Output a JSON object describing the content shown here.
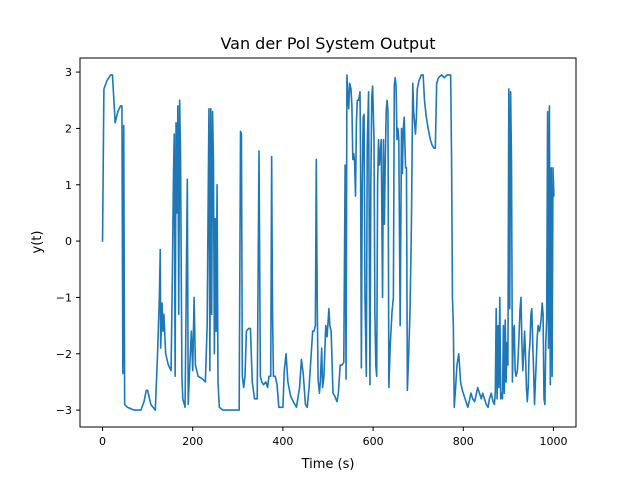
{
  "chart_data": {
    "type": "line",
    "title": "Van der Pol System Output",
    "xlabel": "Time (s)",
    "ylabel": "y(t)",
    "xlim": [
      -50,
      1050
    ],
    "ylim": [
      -3.3,
      3.25
    ],
    "x_ticks": [
      0,
      200,
      400,
      600,
      800,
      1000
    ],
    "x_tick_labels": [
      "0",
      "200",
      "400",
      "600",
      "800",
      "1000"
    ],
    "y_ticks": [
      -3,
      -2,
      -1,
      0,
      1,
      2,
      3
    ],
    "y_tick_labels": [
      "−3",
      "−2",
      "−1",
      "0",
      "1",
      "2",
      "3"
    ],
    "grid": false,
    "legend": "none",
    "series": [
      {
        "color": "#1f77b4",
        "points": [
          [
            0,
            0.0
          ],
          [
            3,
            2.7
          ],
          [
            10,
            2.85
          ],
          [
            18,
            2.95
          ],
          [
            22,
            2.95
          ],
          [
            28,
            2.1
          ],
          [
            34,
            2.3
          ],
          [
            40,
            2.4
          ],
          [
            43,
            2.4
          ],
          [
            45,
            -2.35
          ],
          [
            47,
            2.05
          ],
          [
            49,
            -2.9
          ],
          [
            55,
            -2.95
          ],
          [
            70,
            -3.0
          ],
          [
            85,
            -3.0
          ],
          [
            92,
            -2.85
          ],
          [
            97,
            -2.65
          ],
          [
            100,
            -2.65
          ],
          [
            107,
            -2.9
          ],
          [
            117,
            -3.0
          ],
          [
            122,
            -2.0
          ],
          [
            126,
            -1.0
          ],
          [
            128,
            -0.15
          ],
          [
            129,
            -1.9
          ],
          [
            132,
            -1.1
          ],
          [
            134,
            -1.6
          ],
          [
            136,
            -1.3
          ],
          [
            140,
            -2.0
          ],
          [
            146,
            -2.2
          ],
          [
            152,
            -2.3
          ],
          [
            155,
            -0.5
          ],
          [
            157,
            1.0
          ],
          [
            159,
            1.9
          ],
          [
            161,
            -2.4
          ],
          [
            163,
            2.1
          ],
          [
            165,
            0.5
          ],
          [
            167,
            2.4
          ],
          [
            169,
            -1.3
          ],
          [
            171,
            2.5
          ],
          [
            173,
            1.5
          ],
          [
            176,
            -2.4
          ],
          [
            178,
            -2.8
          ],
          [
            183,
            -2.95
          ],
          [
            188,
            1.1
          ],
          [
            190,
            -2.9
          ],
          [
            193,
            -2.3
          ],
          [
            197,
            -1.6
          ],
          [
            200,
            -2.3
          ],
          [
            203,
            -1.0
          ],
          [
            206,
            -2.2
          ],
          [
            212,
            -2.4
          ],
          [
            222,
            -2.45
          ],
          [
            228,
            -2.5
          ],
          [
            232,
            -1.5
          ],
          [
            234,
            0.5
          ],
          [
            236,
            2.35
          ],
          [
            238,
            -2.3
          ],
          [
            240,
            2.35
          ],
          [
            242,
            -1.3
          ],
          [
            244,
            2.3
          ],
          [
            246,
            1.4
          ],
          [
            248,
            -2.0
          ],
          [
            250,
            0.4
          ],
          [
            252,
            -1.6
          ],
          [
            254,
            1.0
          ],
          [
            256,
            -2.5
          ],
          [
            259,
            -2.95
          ],
          [
            267,
            -3.0
          ],
          [
            280,
            -3.0
          ],
          [
            295,
            -3.0
          ],
          [
            303,
            -3.0
          ],
          [
            306,
            1.95
          ],
          [
            308,
            1.9
          ],
          [
            310,
            -2.4
          ],
          [
            313,
            -2.6
          ],
          [
            316,
            -2.4
          ],
          [
            319,
            -1.6
          ],
          [
            324,
            -1.55
          ],
          [
            328,
            -1.55
          ],
          [
            332,
            -2.5
          ],
          [
            337,
            -2.8
          ],
          [
            343,
            -2.8
          ],
          [
            347,
            1.6
          ],
          [
            350,
            -2.4
          ],
          [
            353,
            -2.5
          ],
          [
            357,
            -2.55
          ],
          [
            362,
            -2.5
          ],
          [
            366,
            -2.6
          ],
          [
            369,
            -2.4
          ],
          [
            373,
            -2.4
          ],
          [
            375,
            1.5
          ],
          [
            377,
            -1.3
          ],
          [
            379,
            -2.4
          ],
          [
            383,
            -2.4
          ],
          [
            387,
            -2.55
          ],
          [
            391,
            -2.95
          ],
          [
            396,
            -2.95
          ],
          [
            400,
            -2.95
          ],
          [
            403,
            -2.3
          ],
          [
            407,
            -2.0
          ],
          [
            411,
            -2.5
          ],
          [
            417,
            -2.75
          ],
          [
            423,
            -2.85
          ],
          [
            430,
            -2.95
          ],
          [
            437,
            -2.6
          ],
          [
            441,
            -2.1
          ],
          [
            445,
            -2.35
          ],
          [
            450,
            -2.9
          ],
          [
            454,
            -2.95
          ],
          [
            458,
            -2.6
          ],
          [
            462,
            -2.1
          ],
          [
            466,
            -1.6
          ],
          [
            469,
            -1.6
          ],
          [
            472,
            -1.5
          ],
          [
            474,
            1.45
          ],
          [
            476,
            -1.0
          ],
          [
            478,
            -2.45
          ],
          [
            481,
            -2.7
          ],
          [
            483,
            -2.5
          ],
          [
            486,
            -1.9
          ],
          [
            488,
            -2.6
          ],
          [
            491,
            -2.4
          ],
          [
            495,
            -1.5
          ],
          [
            498,
            -1.7
          ],
          [
            502,
            -1.2
          ],
          [
            504,
            -1.5
          ],
          [
            507,
            -1.6
          ],
          [
            511,
            -2.7
          ],
          [
            515,
            -2.75
          ],
          [
            520,
            -2.85
          ],
          [
            523,
            -2.7
          ],
          [
            527,
            -2.2
          ],
          [
            531,
            -2.2
          ],
          [
            535,
            -2.15
          ],
          [
            538,
            1.35
          ],
          [
            540,
            -2.45
          ],
          [
            542,
            2.95
          ],
          [
            544,
            2.6
          ],
          [
            546,
            2.35
          ],
          [
            548,
            2.8
          ],
          [
            551,
            2.7
          ],
          [
            553,
            2.4
          ],
          [
            555,
            1.45
          ],
          [
            557,
            1.55
          ],
          [
            559,
            1.4
          ],
          [
            561,
            0.8
          ],
          [
            563,
            2.1
          ],
          [
            565,
            2.5
          ],
          [
            568,
            2.5
          ],
          [
            571,
            2.65
          ],
          [
            572,
            1.7
          ],
          [
            574,
            -2.25
          ],
          [
            576,
            1.0
          ],
          [
            578,
            2.2
          ],
          [
            580,
            2.25
          ],
          [
            582,
            -1.0
          ],
          [
            585,
            -2.4
          ],
          [
            587,
            1.7
          ],
          [
            590,
            2.65
          ],
          [
            593,
            -2.55
          ],
          [
            595,
            1.0
          ],
          [
            597,
            2.55
          ],
          [
            599,
            2.75
          ],
          [
            602,
            1.8
          ],
          [
            604,
            -1.3
          ],
          [
            606,
            -2.2
          ],
          [
            608,
            -2.4
          ],
          [
            610,
            1.0
          ],
          [
            612,
            1.8
          ],
          [
            614,
            1.35
          ],
          [
            618,
            1.8
          ],
          [
            621,
            -1.0
          ],
          [
            623,
            1.8
          ],
          [
            625,
            0.3
          ],
          [
            627,
            1.4
          ],
          [
            629,
            2.3
          ],
          [
            631,
            2.5
          ],
          [
            633,
            2.3
          ],
          [
            635,
            -2.6
          ],
          [
            638,
            -1.85
          ],
          [
            642,
            -1.25
          ],
          [
            645,
            -1.0
          ],
          [
            647,
            2.75
          ],
          [
            649,
            2.9
          ],
          [
            651,
            2.75
          ],
          [
            653,
            1.8
          ],
          [
            655,
            2.0
          ],
          [
            657,
            1.8
          ],
          [
            660,
            -1.5
          ],
          [
            663,
            2.0
          ],
          [
            665,
            1.2
          ],
          [
            667,
            2.0
          ],
          [
            669,
            2.2
          ],
          [
            672,
            1.3
          ],
          [
            674,
            1.3
          ],
          [
            676,
            -2.65
          ],
          [
            679,
            -2.0
          ],
          [
            682,
            -1.2
          ],
          [
            685,
            0.3
          ],
          [
            688,
            2.8
          ],
          [
            690,
            2.3
          ],
          [
            692,
            2.1
          ],
          [
            694,
            1.9
          ],
          [
            696,
            2.2
          ],
          [
            698,
            2.7
          ],
          [
            702,
            2.85
          ],
          [
            707,
            2.95
          ],
          [
            711,
            2.95
          ],
          [
            714,
            2.5
          ],
          [
            718,
            2.2
          ],
          [
            722,
            2.0
          ],
          [
            727,
            1.8
          ],
          [
            731,
            1.7
          ],
          [
            735,
            1.65
          ],
          [
            738,
            1.65
          ],
          [
            741,
            2.8
          ],
          [
            745,
            2.9
          ],
          [
            752,
            2.95
          ],
          [
            758,
            2.9
          ],
          [
            764,
            2.95
          ],
          [
            768,
            2.95
          ],
          [
            772,
            2.95
          ],
          [
            774,
            1.5
          ],
          [
            776,
            -1.0
          ],
          [
            778,
            -1.5
          ],
          [
            780,
            -2.95
          ],
          [
            783,
            -2.6
          ],
          [
            786,
            -2.2
          ],
          [
            790,
            -2.0
          ],
          [
            794,
            -2.5
          ],
          [
            798,
            -2.65
          ],
          [
            802,
            -2.75
          ],
          [
            806,
            -2.85
          ],
          [
            810,
            -2.95
          ],
          [
            813,
            -2.85
          ],
          [
            817,
            -2.7
          ],
          [
            821,
            -2.8
          ],
          [
            825,
            -2.85
          ],
          [
            828,
            -2.75
          ],
          [
            832,
            -2.6
          ],
          [
            836,
            -2.7
          ],
          [
            840,
            -2.8
          ],
          [
            843,
            -2.7
          ],
          [
            847,
            -2.8
          ],
          [
            851,
            -2.9
          ],
          [
            855,
            -2.95
          ],
          [
            858,
            -2.8
          ],
          [
            862,
            -2.7
          ],
          [
            866,
            -2.85
          ],
          [
            869,
            -2.9
          ],
          [
            871,
            -2.7
          ],
          [
            873,
            -1.2
          ],
          [
            875,
            -2.8
          ],
          [
            877,
            -1.5
          ],
          [
            879,
            -2.6
          ],
          [
            881,
            -1.0
          ],
          [
            883,
            -2.8
          ],
          [
            885,
            -2.7
          ],
          [
            887,
            -2.8
          ],
          [
            889,
            -1.5
          ],
          [
            891,
            -2.7
          ],
          [
            893,
            -1.4
          ],
          [
            895,
            -2.5
          ],
          [
            897,
            -1.8
          ],
          [
            899,
            -2.2
          ],
          [
            901,
            2.7
          ],
          [
            903,
            -1.2
          ],
          [
            905,
            2.65
          ],
          [
            907,
            1.4
          ],
          [
            909,
            -2.5
          ],
          [
            911,
            -1.6
          ],
          [
            913,
            -1.5
          ],
          [
            915,
            -2.3
          ],
          [
            917,
            -2.4
          ],
          [
            920,
            -2.3
          ],
          [
            922,
            -2.0
          ],
          [
            924,
            -1.6
          ],
          [
            926,
            -1.2
          ],
          [
            928,
            -1.0
          ],
          [
            930,
            -1.8
          ],
          [
            932,
            -2.3
          ],
          [
            934,
            -2.0
          ],
          [
            936,
            -1.6
          ],
          [
            938,
            -2.0
          ],
          [
            940,
            -2.6
          ],
          [
            942,
            -2.85
          ],
          [
            944,
            -2.6
          ],
          [
            946,
            -2.0
          ],
          [
            948,
            -1.8
          ],
          [
            950,
            -1.3
          ],
          [
            952,
            -1.2
          ],
          [
            954,
            -1.8
          ],
          [
            956,
            -2.3
          ],
          [
            958,
            -2.9
          ],
          [
            960,
            -2.5
          ],
          [
            962,
            -2.1
          ],
          [
            964,
            -1.7
          ],
          [
            966,
            -1.5
          ],
          [
            969,
            -1.6
          ],
          [
            971,
            -1.5
          ],
          [
            973,
            -1.35
          ],
          [
            975,
            -1.1
          ],
          [
            977,
            -1.3
          ],
          [
            979,
            -2.8
          ],
          [
            981,
            -2.9
          ],
          [
            983,
            -1.8
          ],
          [
            985,
            -1.4
          ],
          [
            987,
            2.3
          ],
          [
            989,
            -1.9
          ],
          [
            991,
            2.4
          ],
          [
            993,
            -2.55
          ],
          [
            995,
            1.3
          ],
          [
            997,
            -2.4
          ],
          [
            999,
            1.3
          ],
          [
            1001,
            0.8
          ]
        ]
      }
    ]
  }
}
